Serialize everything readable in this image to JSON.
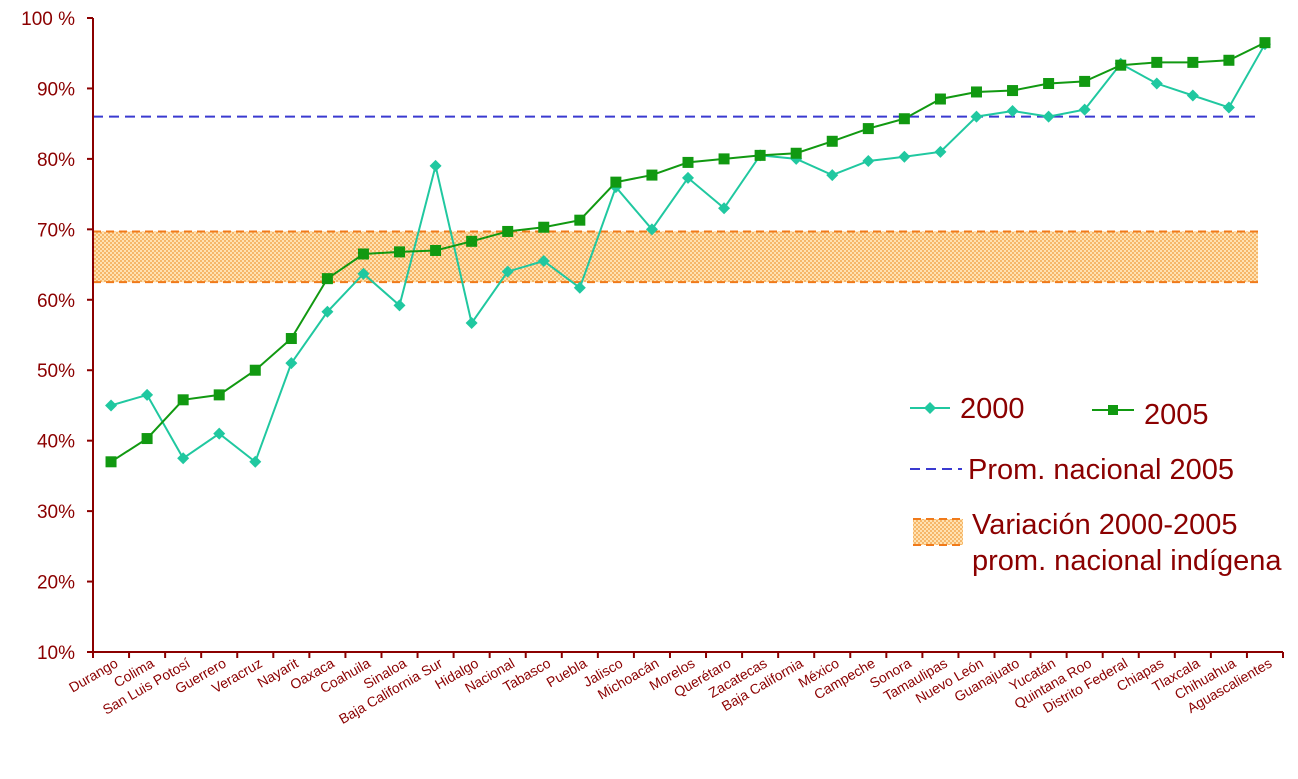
{
  "chart_data": {
    "type": "line",
    "title": "",
    "xlabel": "",
    "ylabel": "",
    "ylim": [
      10,
      100
    ],
    "y_ticks": [
      10,
      20,
      30,
      40,
      50,
      60,
      70,
      80,
      90,
      100
    ],
    "y_tick_labels": [
      "10%",
      "20%",
      "30%",
      "40%",
      "50%",
      "60%",
      "70%",
      "80%",
      "90%",
      "100 %"
    ],
    "categories": [
      "Durango",
      "Colima",
      "San Luis Potosí",
      "Guerrero",
      "Veracruz",
      "Nayarit",
      "Oaxaca",
      "Coahuila",
      "Sinaloa",
      "Baja California Sur",
      "Hidalgo",
      "Nacional",
      "Tabasco",
      "Puebla",
      "Jalisco",
      "Michoacán",
      "Morelos",
      "Querétaro",
      "Zacatecas",
      "Baja California",
      "México",
      "Campeche",
      "Sonora",
      "Tamaulipas",
      "Nuevo León",
      "Guanajuato",
      "Yucatán",
      "Quintana Roo",
      "Distrito Federal",
      "Chiapas",
      "Tlaxcala",
      "Chihuahua",
      "Aguascalientes"
    ],
    "series": [
      {
        "name": "2000",
        "color": "#20c8a0",
        "marker": "diamond",
        "values": [
          45.0,
          46.5,
          37.5,
          41.0,
          37.0,
          51.0,
          58.3,
          63.7,
          59.2,
          79.0,
          56.7,
          64.0,
          65.5,
          61.7,
          76.0,
          70.0,
          77.3,
          73.0,
          80.5,
          80.0,
          77.7,
          79.7,
          80.3,
          81.0,
          86.0,
          86.8,
          86.0,
          87.0,
          93.5,
          90.7,
          89.0,
          87.3,
          96.3
        ]
      },
      {
        "name": "2005",
        "color": "#119911",
        "marker": "square",
        "values": [
          37.0,
          40.3,
          45.8,
          46.5,
          50.0,
          54.5,
          63.0,
          66.5,
          66.8,
          67.0,
          68.3,
          69.7,
          70.3,
          71.3,
          76.7,
          77.7,
          79.5,
          80.0,
          80.5,
          80.8,
          82.5,
          84.3,
          85.7,
          88.5,
          89.5,
          89.7,
          90.7,
          91.0,
          93.3,
          93.7,
          93.7,
          94.0,
          96.5
        ]
      }
    ],
    "reference_line": {
      "label": "Prom. nacional 2005",
      "value": 86.0,
      "color": "#3a3ad0",
      "style": "dashed"
    },
    "band": {
      "label_line1": "Variación 2000-2005",
      "label_line2": "prom. nacional indígena",
      "range": [
        62.5,
        69.7
      ],
      "fill_color": "#ffd79a",
      "edge_color": "#f07a1a"
    },
    "grid": false,
    "legend_position": "right"
  },
  "colors": {
    "axis": "#8b0000",
    "text": "#8b0000"
  }
}
